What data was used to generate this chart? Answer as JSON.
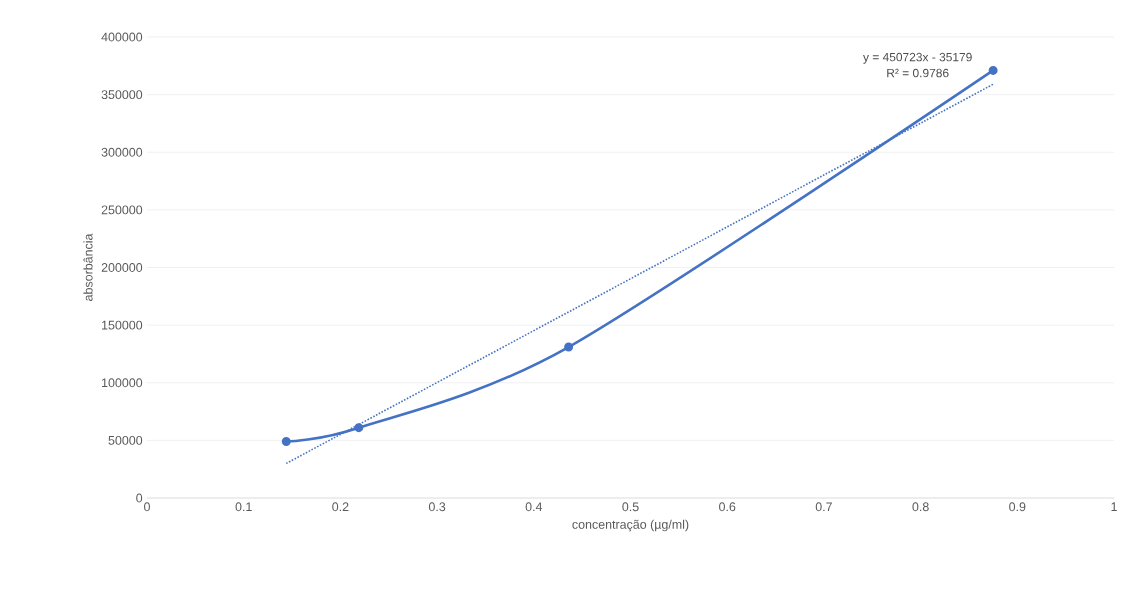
{
  "chart_data": {
    "type": "line",
    "xlabel": "concentração (µg/ml)",
    "ylabel": "absorbância",
    "xlim": [
      0,
      1
    ],
    "xticks": [
      0,
      0.1,
      0.2,
      0.3,
      0.4,
      0.5,
      0.6,
      0.7,
      0.8,
      0.9,
      1
    ],
    "ylim": [
      0,
      400000
    ],
    "yticks": [
      0,
      50000,
      100000,
      150000,
      200000,
      250000,
      300000,
      350000,
      400000
    ],
    "grid": "y",
    "series": [
      {
        "color": "#4472c4",
        "marker": "circle",
        "line_style": "solid",
        "x": [
          0.144,
          0.219,
          0.436,
          0.875
        ],
        "values": [
          49000,
          61000,
          131000,
          371000
        ]
      },
      {
        "color": "#4472c4",
        "marker": "none",
        "line_style": "dotted",
        "x": [
          0.144,
          0.875
        ],
        "values": [
          30000,
          359000
        ]
      }
    ],
    "annotations": [
      "y = 450723x - 35179",
      "R² = 0.9786"
    ]
  }
}
